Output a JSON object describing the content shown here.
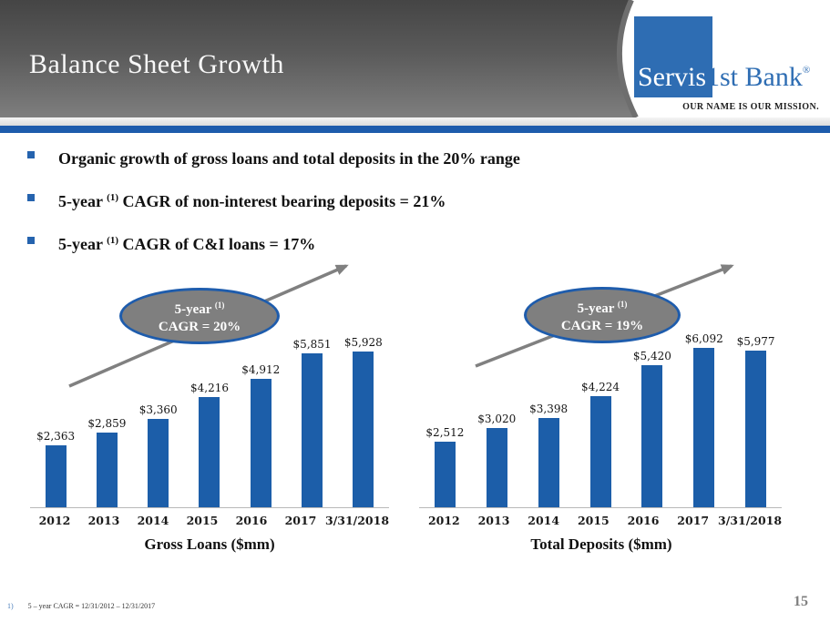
{
  "slide": {
    "title": "Balance Sheet Growth",
    "page_number": "15",
    "footnote": {
      "marker": "1)",
      "text": "5 – year CAGR = 12/31/2012 – 12/31/2017"
    }
  },
  "logo": {
    "name_part1": "Servis",
    "name_part2": "1st Bank",
    "registered": "®",
    "tagline": "OUR NAME IS OUR MISSION.",
    "brand_blue": "#2e6db3"
  },
  "bullets": [
    {
      "prefix": "Organic growth of gross loans and total deposits in the 20% range",
      "sup": "",
      "rest": ""
    },
    {
      "prefix": "5-year ",
      "sup": "(1)",
      "rest": " CAGR of non-interest bearing deposits = 21%"
    },
    {
      "prefix": "5-year ",
      "sup": "(1)",
      "rest": " CAGR of C&I loans = 17%"
    }
  ],
  "chart_data": [
    {
      "type": "bar",
      "title": "Gross Loans ($mm)",
      "categories": [
        "2012",
        "2013",
        "2014",
        "2015",
        "2016",
        "2017",
        "3/31/2018"
      ],
      "values": [
        2363,
        2859,
        3360,
        4216,
        4912,
        5851,
        5928
      ],
      "value_labels": [
        "$2,363",
        "$2,859",
        "$3,360",
        "$4,216",
        "$4,912",
        "$5,851",
        "$5,928"
      ],
      "bar_color": "#1c5ea9",
      "ylim": [
        0,
        6200
      ],
      "grid": false,
      "legend": "none",
      "annotation": {
        "line1": "5-year",
        "sup": "(1)",
        "line2": "CAGR = 20%"
      }
    },
    {
      "type": "bar",
      "title": "Total Deposits ($mm)",
      "categories": [
        "2012",
        "2013",
        "2014",
        "2015",
        "2016",
        "2017",
        "3/31/2018"
      ],
      "values": [
        2512,
        3020,
        3398,
        4224,
        5420,
        6092,
        5977
      ],
      "value_labels": [
        "$2,512",
        "$3,020",
        "$3,398",
        "$4,224",
        "$5,420",
        "$6,092",
        "$5,977"
      ],
      "bar_color": "#1c5ea9",
      "ylim": [
        0,
        6200
      ],
      "grid": false,
      "legend": "none",
      "annotation": {
        "line1": "5-year",
        "sup": "(1)",
        "line2": "CAGR = 19%"
      }
    }
  ],
  "colors": {
    "banner_top": "#454545",
    "banner_bottom": "#7e7e7e",
    "stripe_gray": "#e4e4e4",
    "stripe_blue": "#1e5cac",
    "bar_blue": "#1c5ea9",
    "oval_fill": "#7f7f7f",
    "oval_border": "#1e5cac",
    "arrow_gray": "#808080"
  }
}
